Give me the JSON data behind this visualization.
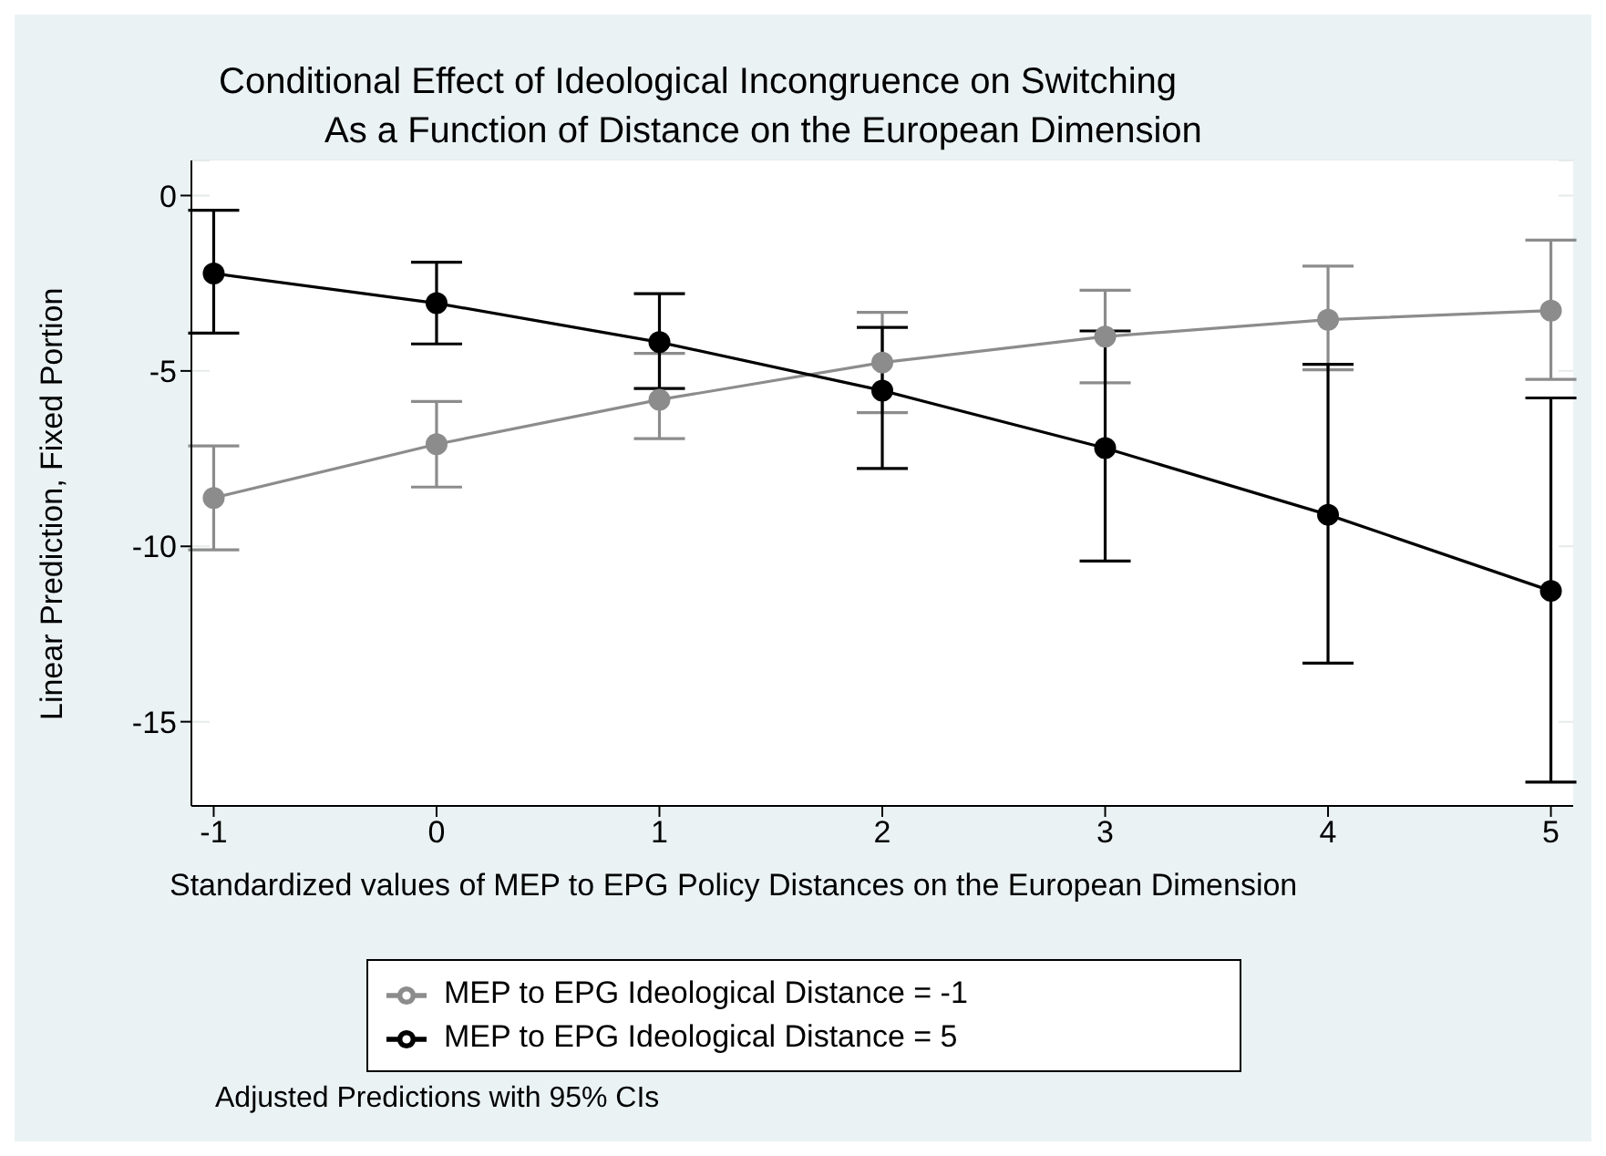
{
  "chart_data": {
    "type": "line",
    "title": "Conditional Effect of Ideological Incongruence on Switching",
    "subtitle": "As a Function of Distance on the European Dimension",
    "xlabel": "Standardized values of MEP to EPG Policy Distances on the European Dimension",
    "ylabel": "Linear Prediction, Fixed Portion",
    "x": [
      -1,
      0,
      1,
      2,
      3,
      4,
      5
    ],
    "series": [
      {
        "name": "MEP to EPG Ideological Distance = -1",
        "color": "#8c8c8c",
        "values": [
          -8.62,
          -7.09,
          -5.82,
          -4.76,
          -4.02,
          -3.54,
          -3.28
        ],
        "errors": [
          [
            -10.1,
            -7.14
          ],
          [
            -8.31,
            -5.87
          ],
          [
            -6.93,
            -4.5
          ],
          [
            -6.19,
            -3.33
          ],
          [
            -5.34,
            -2.7
          ],
          [
            -4.97,
            -2.01
          ],
          [
            -5.24,
            -1.27
          ]
        ]
      },
      {
        "name": "MEP to EPG Ideological Distance = 5",
        "color": "#000000",
        "values": [
          -2.22,
          -3.07,
          -4.18,
          -5.56,
          -7.2,
          -9.1,
          -11.27
        ],
        "errors": [
          [
            -3.92,
            -0.42
          ],
          [
            -4.23,
            -1.9
          ],
          [
            -5.5,
            -2.8
          ],
          [
            -7.78,
            -3.76
          ],
          [
            -10.42,
            -3.86
          ],
          [
            -13.33,
            -4.81
          ],
          [
            -16.72,
            -5.77
          ]
        ]
      }
    ],
    "xlim": [
      -1.1,
      5.1
    ],
    "xticks": [
      -1,
      0,
      1,
      2,
      3,
      4,
      5
    ],
    "ylim": [
      -17.4,
      1
    ],
    "yticks": [
      -15,
      -10,
      -5,
      0
    ],
    "grid": "y",
    "legend": "bottom",
    "marker": "circle",
    "line_style": "solid",
    "annotations": [
      "Adjusted Predictions with 95% CIs"
    ]
  }
}
